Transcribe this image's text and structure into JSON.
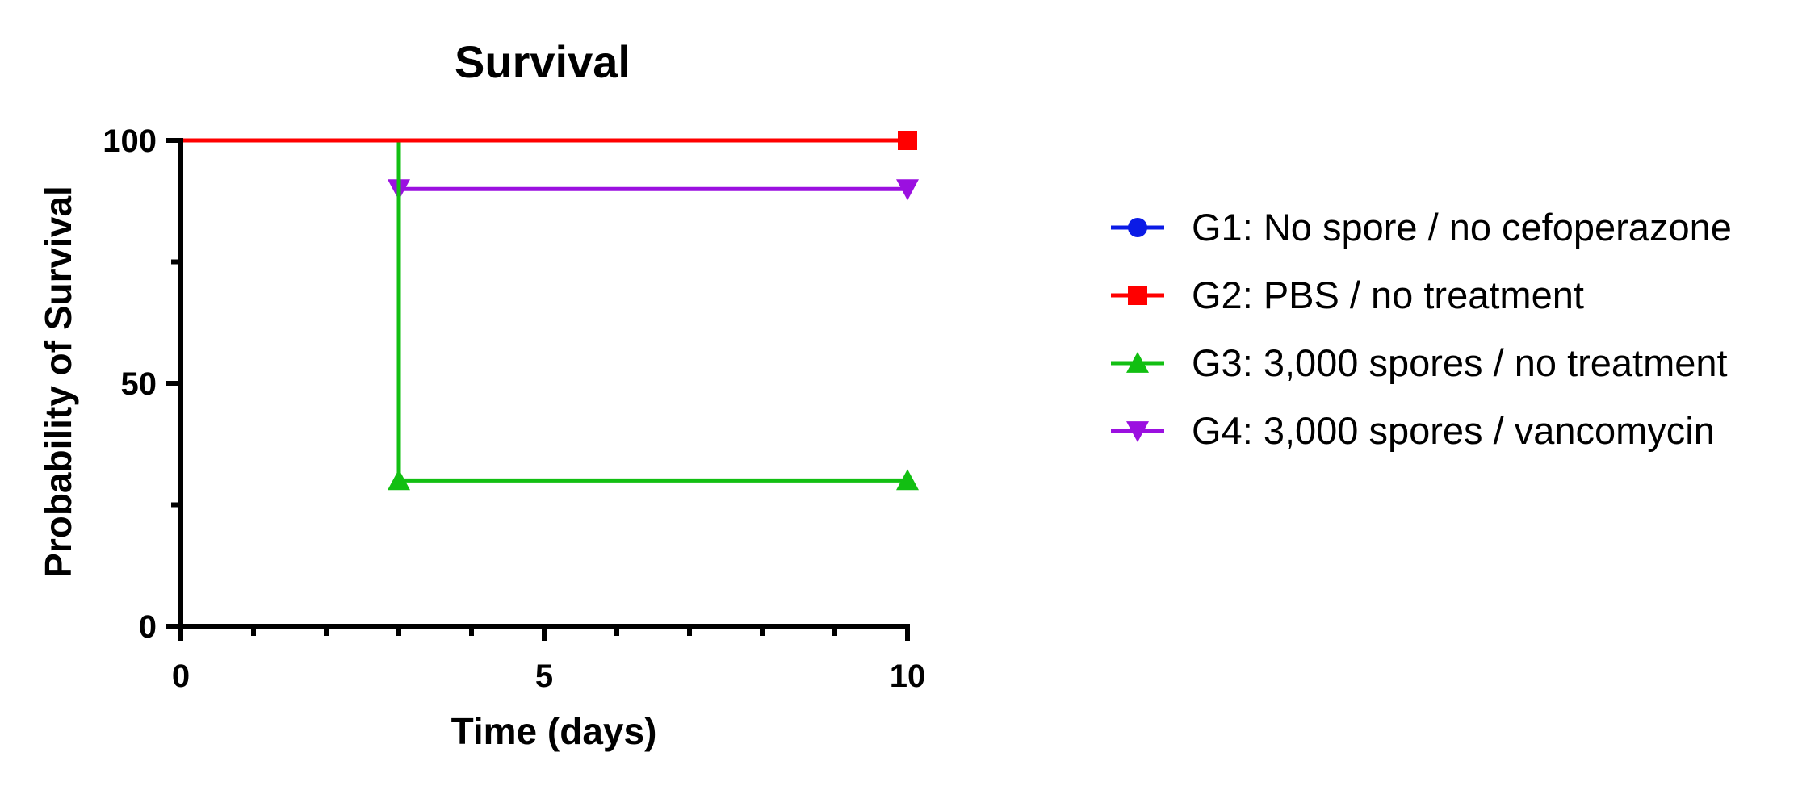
{
  "chart_data": {
    "type": "line",
    "subtype": "kaplan-meier-step",
    "title": "Survival",
    "xlabel": "Time (days)",
    "ylabel": "Probability of Survival",
    "xlim": [
      0,
      10
    ],
    "ylim": [
      0,
      100
    ],
    "x_major_ticks": [
      0,
      5,
      10
    ],
    "x_minor_ticks": [
      1,
      2,
      3,
      4,
      6,
      7,
      8,
      9
    ],
    "y_major_ticks": [
      0,
      50,
      100
    ],
    "y_minor_ticks": [
      25,
      75
    ],
    "grid": false,
    "legend": "right",
    "series": [
      {
        "name": "G1: No spore / no cefoperazone",
        "color": "#0b1be6",
        "marker": "circle",
        "steps": [
          [
            0,
            100
          ],
          [
            10,
            100
          ]
        ],
        "marker_points": [
          [
            10,
            100
          ]
        ]
      },
      {
        "name": "G2: PBS / no treatment",
        "color": "#ff0000",
        "marker": "square",
        "steps": [
          [
            0,
            100
          ],
          [
            10,
            100
          ]
        ],
        "marker_points": [
          [
            10,
            100
          ]
        ]
      },
      {
        "name": "G3: 3,000 spores / no treatment",
        "color": "#12bf12",
        "marker": "triangle-up",
        "steps": [
          [
            0,
            100
          ],
          [
            3,
            100
          ],
          [
            3,
            30
          ],
          [
            10,
            30
          ]
        ],
        "marker_points": [
          [
            3,
            30
          ],
          [
            10,
            30
          ]
        ]
      },
      {
        "name": "G4: 3,000 spores / vancomycin",
        "color": "#9b10e0",
        "marker": "triangle-down",
        "steps": [
          [
            0,
            100
          ],
          [
            3,
            100
          ],
          [
            3,
            90
          ],
          [
            10,
            90
          ]
        ],
        "marker_points": [
          [
            3,
            90
          ],
          [
            10,
            90
          ]
        ]
      }
    ]
  }
}
